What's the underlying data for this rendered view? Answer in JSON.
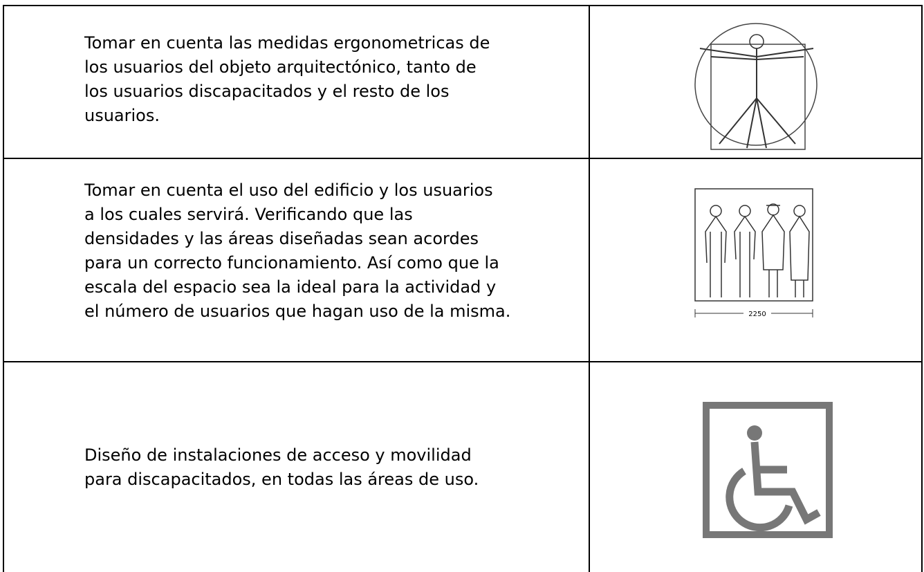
{
  "table": {
    "rows": [
      {
        "text": [
          "Tomar en cuenta las medidas ergonometricas de",
          "los usuarios del objeto arquitectónico, tanto de",
          "los usuarios discapacitados y el resto de los",
          "usuarios."
        ]
      },
      {
        "text": [
          "Tomar en cuenta el uso del edificio y los usuarios",
          "a los cuales servirá.  Verificando que las",
          "densidades y las áreas diseñadas sean acordes",
          "para un correcto funcionamiento. Así como que la",
          "escala del espacio sea la ideal para la actividad y",
          "el número de usuarios que hagan uso de la misma."
        ],
        "figure_label": "2250"
      },
      {
        "text": [
          "Diseño de instalaciones de acceso y movilidad",
          "para discapacitados, en todas las áreas de uso."
        ]
      }
    ]
  }
}
